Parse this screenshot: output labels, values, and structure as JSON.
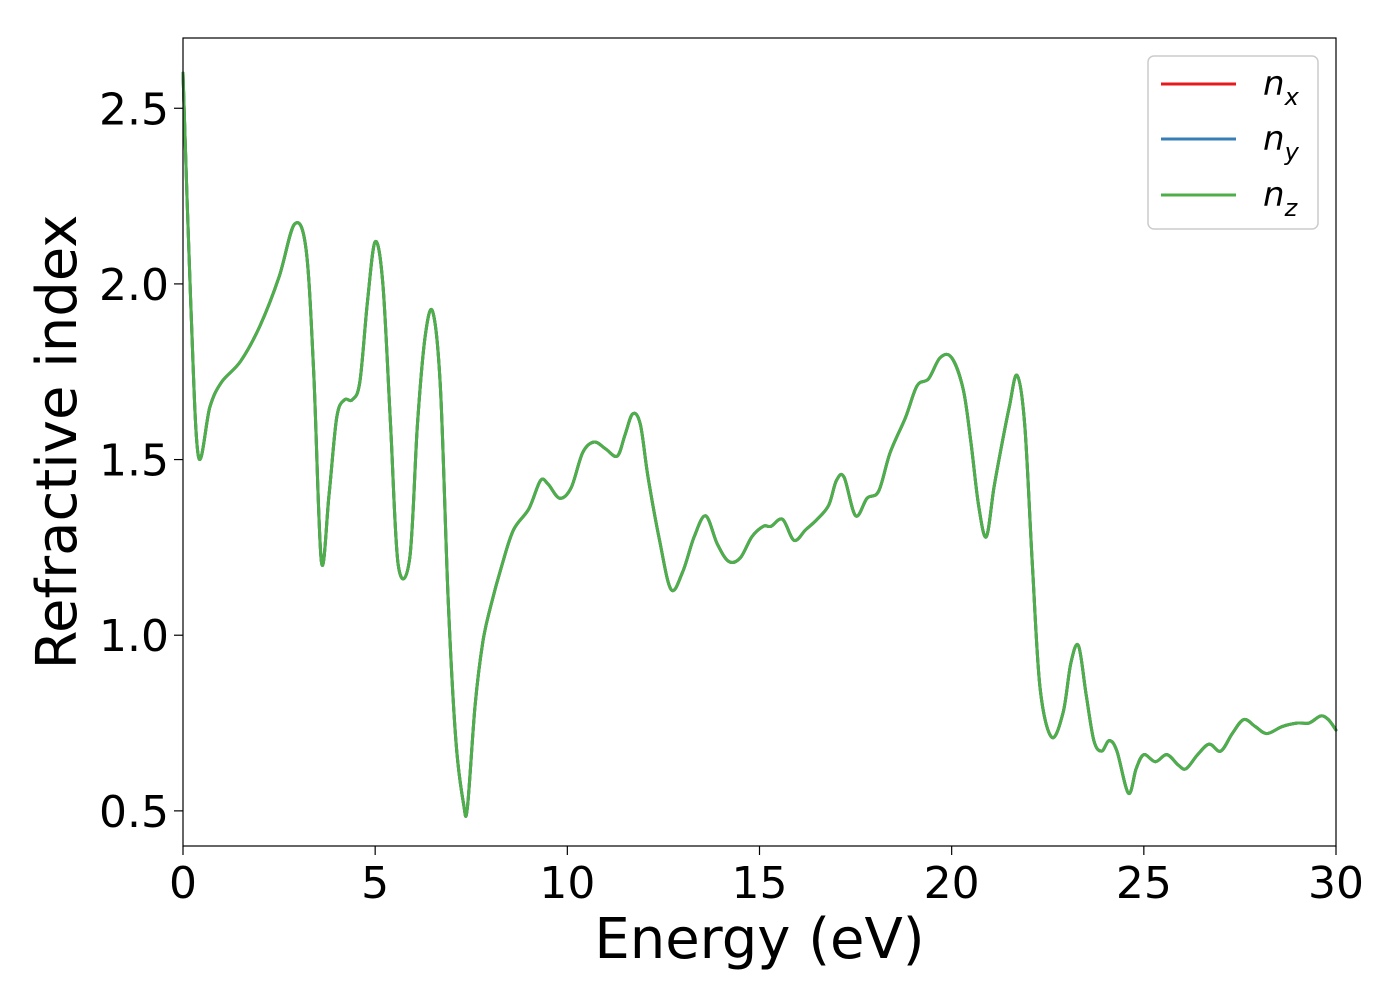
{
  "chart_data": {
    "type": "line",
    "xlabel": "Energy (eV)",
    "ylabel": "Refractive index",
    "xlim": [
      0,
      30
    ],
    "ylim": [
      0.4,
      2.7
    ],
    "xticks": [
      0,
      5,
      10,
      15,
      20,
      25,
      30
    ],
    "xtick_labels": [
      "0",
      "5",
      "10",
      "15",
      "20",
      "25",
      "30"
    ],
    "yticks": [
      0.5,
      1.0,
      1.5,
      2.0,
      2.5
    ],
    "ytick_labels": [
      "0.5",
      "1.0",
      "1.5",
      "2.0",
      "2.5"
    ],
    "grid": false,
    "legend_position": "top-right",
    "series": [
      {
        "name": "n_x",
        "label_base": "n",
        "label_sub": "x",
        "color": "#e41a1c",
        "x": [
          0,
          0.2,
          0.4,
          0.7,
          1,
          1.5,
          2,
          2.5,
          2.9,
          3.2,
          3.4,
          3.6,
          3.8,
          4,
          4.2,
          4.4,
          4.6,
          4.8,
          5,
          5.2,
          5.4,
          5.6,
          5.9,
          6.1,
          6.3,
          6.5,
          6.7,
          6.9,
          7.1,
          7.3,
          7.4,
          7.6,
          7.8,
          8,
          8.3,
          8.6,
          9,
          9.3,
          9.5,
          9.8,
          10.1,
          10.4,
          10.7,
          11,
          11.3,
          11.5,
          11.7,
          11.9,
          12.1,
          12.4,
          12.7,
          13,
          13.3,
          13.6,
          13.9,
          14.2,
          14.5,
          14.8,
          15.1,
          15.3,
          15.6,
          15.9,
          16.2,
          16.5,
          16.8,
          17,
          17.2,
          17.5,
          17.8,
          18.1,
          18.4,
          18.8,
          19.1,
          19.4,
          19.7,
          20,
          20.3,
          20.5,
          20.7,
          20.9,
          21.1,
          21.3,
          21.5,
          21.7,
          21.9,
          22.1,
          22.3,
          22.6,
          22.9,
          23.1,
          23.3,
          23.5,
          23.7,
          23.9,
          24.1,
          24.3,
          24.6,
          24.8,
          25,
          25.3,
          25.6,
          25.9,
          26.1,
          26.4,
          26.7,
          27,
          27.3,
          27.6,
          27.9,
          28.2,
          28.6,
          29,
          29.3,
          29.6,
          29.8,
          30
        ],
        "y": [
          2.6,
          1.95,
          1.51,
          1.65,
          1.72,
          1.78,
          1.88,
          2.02,
          2.17,
          2.1,
          1.75,
          1.21,
          1.4,
          1.62,
          1.67,
          1.67,
          1.72,
          1.95,
          2.12,
          2.0,
          1.6,
          1.2,
          1.22,
          1.6,
          1.85,
          1.92,
          1.7,
          1.1,
          0.7,
          0.52,
          0.51,
          0.8,
          0.98,
          1.08,
          1.2,
          1.3,
          1.36,
          1.44,
          1.43,
          1.39,
          1.42,
          1.52,
          1.55,
          1.53,
          1.51,
          1.57,
          1.63,
          1.6,
          1.45,
          1.27,
          1.13,
          1.18,
          1.28,
          1.34,
          1.26,
          1.21,
          1.22,
          1.28,
          1.31,
          1.31,
          1.33,
          1.27,
          1.3,
          1.33,
          1.37,
          1.44,
          1.45,
          1.34,
          1.39,
          1.41,
          1.52,
          1.62,
          1.71,
          1.73,
          1.79,
          1.79,
          1.7,
          1.55,
          1.37,
          1.28,
          1.42,
          1.54,
          1.65,
          1.74,
          1.6,
          1.2,
          0.85,
          0.71,
          0.78,
          0.92,
          0.97,
          0.83,
          0.7,
          0.67,
          0.7,
          0.67,
          0.55,
          0.62,
          0.66,
          0.64,
          0.66,
          0.63,
          0.62,
          0.66,
          0.69,
          0.67,
          0.72,
          0.76,
          0.74,
          0.72,
          0.74,
          0.75,
          0.75,
          0.77,
          0.76,
          0.73
        ]
      },
      {
        "name": "n_y",
        "label_base": "n",
        "label_sub": "y",
        "color": "#377eb8",
        "x": [
          0,
          0.2,
          0.4,
          0.7,
          1,
          1.5,
          2,
          2.5,
          2.9,
          3.2,
          3.4,
          3.6,
          3.8,
          4,
          4.2,
          4.4,
          4.6,
          4.8,
          5,
          5.2,
          5.4,
          5.6,
          5.9,
          6.1,
          6.3,
          6.5,
          6.7,
          6.9,
          7.1,
          7.3,
          7.4,
          7.6,
          7.8,
          8,
          8.3,
          8.6,
          9,
          9.3,
          9.5,
          9.8,
          10.1,
          10.4,
          10.7,
          11,
          11.3,
          11.5,
          11.7,
          11.9,
          12.1,
          12.4,
          12.7,
          13,
          13.3,
          13.6,
          13.9,
          14.2,
          14.5,
          14.8,
          15.1,
          15.3,
          15.6,
          15.9,
          16.2,
          16.5,
          16.8,
          17,
          17.2,
          17.5,
          17.8,
          18.1,
          18.4,
          18.8,
          19.1,
          19.4,
          19.7,
          20,
          20.3,
          20.5,
          20.7,
          20.9,
          21.1,
          21.3,
          21.5,
          21.7,
          21.9,
          22.1,
          22.3,
          22.6,
          22.9,
          23.1,
          23.3,
          23.5,
          23.7,
          23.9,
          24.1,
          24.3,
          24.6,
          24.8,
          25,
          25.3,
          25.6,
          25.9,
          26.1,
          26.4,
          26.7,
          27,
          27.3,
          27.6,
          27.9,
          28.2,
          28.6,
          29,
          29.3,
          29.6,
          29.8,
          30
        ],
        "y": [
          2.6,
          1.95,
          1.51,
          1.65,
          1.72,
          1.78,
          1.88,
          2.02,
          2.17,
          2.1,
          1.75,
          1.21,
          1.4,
          1.62,
          1.67,
          1.67,
          1.72,
          1.95,
          2.12,
          2.0,
          1.6,
          1.2,
          1.22,
          1.6,
          1.85,
          1.92,
          1.7,
          1.1,
          0.7,
          0.52,
          0.51,
          0.8,
          0.98,
          1.08,
          1.2,
          1.3,
          1.36,
          1.44,
          1.43,
          1.39,
          1.42,
          1.52,
          1.55,
          1.53,
          1.51,
          1.57,
          1.63,
          1.6,
          1.45,
          1.27,
          1.13,
          1.18,
          1.28,
          1.34,
          1.26,
          1.21,
          1.22,
          1.28,
          1.31,
          1.31,
          1.33,
          1.27,
          1.3,
          1.33,
          1.37,
          1.44,
          1.45,
          1.34,
          1.39,
          1.41,
          1.52,
          1.62,
          1.71,
          1.73,
          1.79,
          1.79,
          1.7,
          1.55,
          1.37,
          1.28,
          1.42,
          1.54,
          1.65,
          1.74,
          1.6,
          1.2,
          0.85,
          0.71,
          0.78,
          0.92,
          0.97,
          0.83,
          0.7,
          0.67,
          0.7,
          0.67,
          0.55,
          0.62,
          0.66,
          0.64,
          0.66,
          0.63,
          0.62,
          0.66,
          0.69,
          0.67,
          0.72,
          0.76,
          0.74,
          0.72,
          0.74,
          0.75,
          0.75,
          0.77,
          0.76,
          0.73
        ]
      },
      {
        "name": "n_z",
        "label_base": "n",
        "label_sub": "z",
        "color": "#4daf4a",
        "x": [
          0,
          0.2,
          0.4,
          0.7,
          1,
          1.5,
          2,
          2.5,
          2.9,
          3.2,
          3.4,
          3.6,
          3.8,
          4,
          4.2,
          4.4,
          4.6,
          4.8,
          5,
          5.2,
          5.4,
          5.6,
          5.9,
          6.1,
          6.3,
          6.5,
          6.7,
          6.9,
          7.1,
          7.3,
          7.4,
          7.6,
          7.8,
          8,
          8.3,
          8.6,
          9,
          9.3,
          9.5,
          9.8,
          10.1,
          10.4,
          10.7,
          11,
          11.3,
          11.5,
          11.7,
          11.9,
          12.1,
          12.4,
          12.7,
          13,
          13.3,
          13.6,
          13.9,
          14.2,
          14.5,
          14.8,
          15.1,
          15.3,
          15.6,
          15.9,
          16.2,
          16.5,
          16.8,
          17,
          17.2,
          17.5,
          17.8,
          18.1,
          18.4,
          18.8,
          19.1,
          19.4,
          19.7,
          20,
          20.3,
          20.5,
          20.7,
          20.9,
          21.1,
          21.3,
          21.5,
          21.7,
          21.9,
          22.1,
          22.3,
          22.6,
          22.9,
          23.1,
          23.3,
          23.5,
          23.7,
          23.9,
          24.1,
          24.3,
          24.6,
          24.8,
          25,
          25.3,
          25.6,
          25.9,
          26.1,
          26.4,
          26.7,
          27,
          27.3,
          27.6,
          27.9,
          28.2,
          28.6,
          29,
          29.3,
          29.6,
          29.8,
          30
        ],
        "y": [
          2.6,
          1.95,
          1.51,
          1.65,
          1.72,
          1.78,
          1.88,
          2.02,
          2.17,
          2.1,
          1.75,
          1.21,
          1.4,
          1.62,
          1.67,
          1.67,
          1.72,
          1.95,
          2.12,
          2.0,
          1.6,
          1.2,
          1.22,
          1.6,
          1.85,
          1.92,
          1.7,
          1.1,
          0.7,
          0.52,
          0.51,
          0.8,
          0.98,
          1.08,
          1.2,
          1.3,
          1.36,
          1.44,
          1.43,
          1.39,
          1.42,
          1.52,
          1.55,
          1.53,
          1.51,
          1.57,
          1.63,
          1.6,
          1.45,
          1.27,
          1.13,
          1.18,
          1.28,
          1.34,
          1.26,
          1.21,
          1.22,
          1.28,
          1.31,
          1.31,
          1.33,
          1.27,
          1.3,
          1.33,
          1.37,
          1.44,
          1.45,
          1.34,
          1.39,
          1.41,
          1.52,
          1.62,
          1.71,
          1.73,
          1.79,
          1.79,
          1.7,
          1.55,
          1.37,
          1.28,
          1.42,
          1.54,
          1.65,
          1.74,
          1.6,
          1.2,
          0.85,
          0.71,
          0.78,
          0.92,
          0.97,
          0.83,
          0.7,
          0.67,
          0.7,
          0.67,
          0.55,
          0.62,
          0.66,
          0.64,
          0.66,
          0.63,
          0.62,
          0.66,
          0.69,
          0.67,
          0.72,
          0.76,
          0.74,
          0.72,
          0.74,
          0.75,
          0.75,
          0.77,
          0.76,
          0.73
        ]
      }
    ]
  }
}
